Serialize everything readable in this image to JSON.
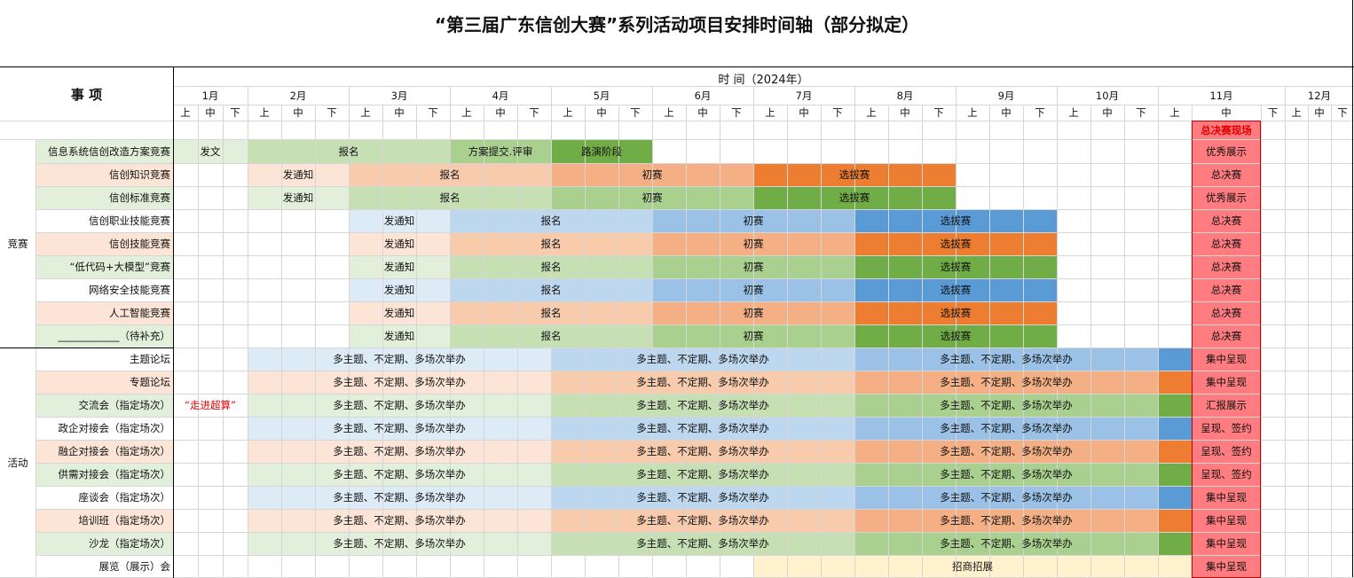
{
  "title": "“第三届广东信创大赛”系列活动项目安排时间轴（部分拟定）",
  "header": {
    "item_label": "事 项",
    "time_label": "时 间（2024年）",
    "months": [
      "1月",
      "2月",
      "3月",
      "4月",
      "5月",
      "6月",
      "7月",
      "8月",
      "9月",
      "10月",
      "11月",
      "12月"
    ],
    "thirds": [
      "上",
      "中",
      "下"
    ],
    "final_venue": "总决赛现场"
  },
  "groups": {
    "competition": "竞赛",
    "activity": "活动"
  },
  "competition_rows": [
    {
      "name": "信息系统信创改造方案竞赛",
      "bars": [
        "发文",
        "报名",
        "方案提交.评审",
        "路演阶段"
      ],
      "final": "优秀展示"
    },
    {
      "name": "信创知识竞赛",
      "bars": [
        "发通知",
        "报名",
        "初赛",
        "选拔赛"
      ],
      "final": "总决赛"
    },
    {
      "name": "信创标准竞赛",
      "bars": [
        "发通知",
        "报名",
        "初赛",
        "选拔赛"
      ],
      "final": "优秀展示"
    },
    {
      "name": "信创职业技能竞赛",
      "bars": [
        "发通知",
        "报名",
        "初赛",
        "选拔赛"
      ],
      "final": "总决赛"
    },
    {
      "name": "信创技能竞赛",
      "bars": [
        "发通知",
        "报名",
        "初赛",
        "选拔赛"
      ],
      "final": "总决赛"
    },
    {
      "name": "“低代码+大模型”竞赛",
      "bars": [
        "发通知",
        "报名",
        "初赛",
        "选拔赛"
      ],
      "final": "总决赛"
    },
    {
      "name": "网络安全技能竞赛",
      "bars": [
        "发通知",
        "报名",
        "初赛",
        "选拔赛"
      ],
      "final": "总决赛"
    },
    {
      "name": "人工智能竞赛",
      "bars": [
        "发通知",
        "报名",
        "初赛",
        "选拔赛"
      ],
      "final": "总决赛"
    },
    {
      "name": "____________（待补充）",
      "bars": [
        "发通知",
        "报名",
        "初赛",
        "选拔赛"
      ],
      "final": "总决赛"
    }
  ],
  "activity_rows": [
    {
      "name": "主题论坛",
      "pre": "",
      "bars": [
        "多主题、不定期、多场次举办",
        "多主题、不定期、多场次举办",
        "多主题、不定期、多场次举办"
      ],
      "final": "集中呈现"
    },
    {
      "name": "专题论坛",
      "pre": "",
      "bars": [
        "多主题、不定期、多场次举办",
        "多主题、不定期、多场次举办",
        "多主题、不定期、多场次举办"
      ],
      "final": "集中呈现"
    },
    {
      "name": "交流会（指定场次）",
      "pre": "“走进超算”",
      "bars": [
        "多主题、不定期、多场次举办",
        "多主题、不定期、多场次举办",
        "多主题、不定期、多场次举办"
      ],
      "final": "汇报展示"
    },
    {
      "name": "政企对接会（指定场次）",
      "pre": "",
      "bars": [
        "多主题、不定期、多场次举办",
        "多主题、不定期、多场次举办",
        "多主题、不定期、多场次举办"
      ],
      "final": "呈现、签约"
    },
    {
      "name": "融企对接会（指定场次）",
      "pre": "",
      "bars": [
        "多主题、不定期、多场次举办",
        "多主题、不定期、多场次举办",
        "多主题、不定期、多场次举办"
      ],
      "final": "呈现、签约"
    },
    {
      "name": "供需对接会（指定场次）",
      "pre": "",
      "bars": [
        "多主题、不定期、多场次举办",
        "多主题、不定期、多场次举办",
        "多主题、不定期、多场次举办"
      ],
      "final": "呈现、签约"
    },
    {
      "name": "座谈会（指定场次）",
      "pre": "",
      "bars": [
        "多主题、不定期、多场次举办",
        "多主题、不定期、多场次举办",
        "多主题、不定期、多场次举办"
      ],
      "final": "集中呈现"
    },
    {
      "name": "培训班（指定场次）",
      "pre": "",
      "bars": [
        "多主题、不定期、多场次举办",
        "多主题、不定期、多场次举办",
        "多主题、不定期、多场次举办"
      ],
      "final": "集中呈现"
    },
    {
      "name": "沙龙（指定场次）",
      "pre": "",
      "bars": [
        "多主题、不定期、多场次举办",
        "多主题、不定期、多场次举办",
        "多主题、不定期、多场次举办"
      ],
      "final": "集中呈现"
    }
  ],
  "exhibition_row": {
    "name": "展览（展示）会",
    "bars": [
      "招商招展"
    ],
    "final": "集中呈现"
  },
  "palette": {
    "blue": [
      "#ddebf7",
      "#bdd7ee",
      "#9bc2e6",
      "#5b9bd5"
    ],
    "orange": [
      "#fce4d6",
      "#f8cbad",
      "#f4b084",
      "#ed7d31"
    ],
    "green": [
      "#e2efda",
      "#c6e0b4",
      "#a9d08e",
      "#70ad47"
    ],
    "final": "#ff7c80",
    "expo": "#fff2cc"
  }
}
